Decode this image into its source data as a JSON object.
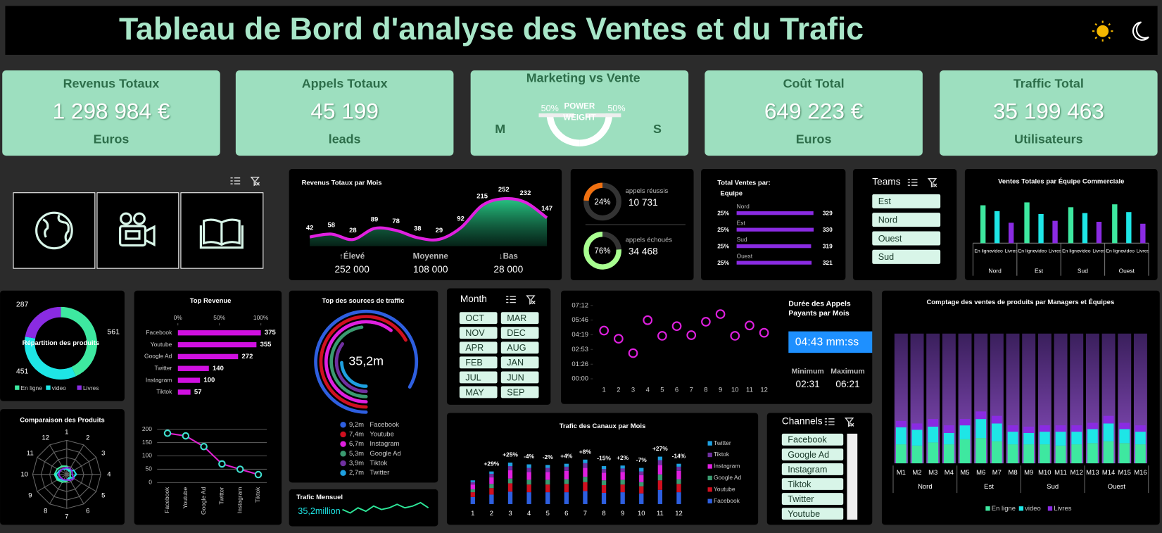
{
  "header": {
    "title": "Tableau de Bord d'analyse des Ventes et du Trafic"
  },
  "kpis": [
    {
      "title": "Revenus Totaux",
      "value": "1 298 984 €",
      "unit": "Euros"
    },
    {
      "title": "Appels Totaux",
      "value": "45 199",
      "unit": "leads"
    },
    {
      "title": "Coût Total",
      "value": "649 223 €",
      "unit": "Euros"
    },
    {
      "title": "Traffic Total",
      "value": "35 199 463",
      "unit": "Utilisateurs"
    }
  ],
  "power_weight": {
    "title": "Marketing vs Vente",
    "label": [
      "POWER",
      "WEIGHT"
    ],
    "left_label": "M",
    "right_label": "S",
    "values": [
      50,
      50
    ],
    "value_labels": [
      "50%",
      "50%"
    ]
  },
  "slicers": {
    "teams": {
      "title": "Teams",
      "items": [
        "Est",
        "Nord",
        "Ouest",
        "Sud"
      ]
    },
    "month": {
      "title": "Month",
      "items": [
        "OCT",
        "MAR",
        "NOV",
        "DEC",
        "APR",
        "AUG",
        "FEB",
        "JAN",
        "JUL",
        "JUN",
        "MAY",
        "SEP"
      ]
    },
    "channels": {
      "title": "Channels",
      "items": [
        "Facebook",
        "Google Ad",
        "Instagram",
        "Tiktok",
        "Twitter",
        "Youtube"
      ]
    }
  },
  "chart_data": [
    {
      "type": "area",
      "title": "Revenus Totaux par Mois",
      "values": [
        42,
        58,
        28,
        89,
        78,
        38,
        29,
        92,
        215,
        252,
        232,
        147
      ],
      "color": "#e020e0",
      "stats": [
        {
          "label": "↑Élevé",
          "value": "252 000"
        },
        {
          "label": "Moyenne",
          "value": "108 000"
        },
        {
          "label": "↓Bas",
          "value": "28 000"
        }
      ]
    },
    {
      "type": "gauge",
      "categories": [
        "appels réussis",
        "appels échoués"
      ],
      "values": [
        24,
        76
      ],
      "value_labels": [
        "24%",
        "76%"
      ],
      "counts": [
        "10 731",
        "34 468"
      ],
      "colors": [
        "#f07010",
        "#a8ff90"
      ]
    },
    {
      "type": "hbar",
      "title": [
        "Total Ventes par:",
        "Equipe"
      ],
      "categories": [
        "Nord",
        "Est",
        "Sud",
        "Ouest"
      ],
      "values": [
        329,
        330,
        319,
        321
      ],
      "share_labels": [
        "25%",
        "25%",
        "25%",
        "25%"
      ],
      "color": "#8a2be2"
    },
    {
      "type": "grouped-bar",
      "title": "Ventes Totales par Équipe Commerciale",
      "categories": [
        "Nord",
        "Est",
        "Sud",
        "Ouest"
      ],
      "series": [
        {
          "name": "En ligne",
          "color": "#3ee8a0",
          "values": [
            78,
            84,
            74,
            80
          ]
        },
        {
          "name": "video",
          "color": "#1ee6e6",
          "values": [
            66,
            60,
            62,
            64
          ]
        },
        {
          "name": "Livres",
          "color": "#8a2be2",
          "values": [
            42,
            46,
            44,
            40
          ]
        }
      ]
    },
    {
      "type": "donut",
      "title": "Répartition des produits",
      "categories": [
        "En ligne",
        "video",
        "Livres"
      ],
      "values": [
        561,
        451,
        287
      ],
      "colors": [
        "#3ee8a0",
        "#1ee6e6",
        "#8a2be2"
      ]
    },
    {
      "type": "hbar",
      "title": "Top Revenue",
      "categories": [
        "Facebook",
        "Youtube",
        "Google Ad",
        "Twitter",
        "Instagram",
        "Tiktok"
      ],
      "values": [
        375,
        355,
        272,
        140,
        100,
        57
      ],
      "color": "#d010e0",
      "xlim": [
        0,
        375
      ],
      "xticks": [
        {
          "value": 0,
          "label": "0%"
        },
        {
          "value": 187.5,
          "label": "50%"
        },
        {
          "value": 375,
          "label": "100%"
        }
      ]
    },
    {
      "type": "line",
      "categories": [
        "Facebook",
        "Youtube",
        "Google Ad",
        "Twitter",
        "Instagram",
        "Tiktok"
      ],
      "values": [
        185,
        175,
        135,
        70,
        50,
        30
      ],
      "ylim": [
        0,
        200
      ],
      "yticks": [
        0,
        50,
        100,
        150,
        200
      ],
      "grid": true,
      "color": "#e020d0",
      "marker_color": "#40e0d0"
    },
    {
      "type": "radar",
      "title": "Comparaison des Produits",
      "categories": [
        "1",
        "2",
        "3",
        "4",
        "5",
        "6",
        "7",
        "8",
        "9",
        "10",
        "11",
        "12"
      ],
      "rlim": [
        0,
        5
      ],
      "series": [
        {
          "name": "En ligne",
          "color": "#3ee8a0",
          "values": [
            1.2,
            0.8,
            0.6,
            0.5,
            0.6,
            0.8,
            1.0,
            1.3,
            1.6,
            1.8,
            1.6,
            1.4
          ]
        },
        {
          "name": "video",
          "color": "#1ee6e6",
          "values": [
            0.8,
            0.6,
            1.2,
            1.4,
            1.0,
            0.6,
            0.8,
            1.0,
            1.4,
            1.6,
            1.2,
            0.9
          ]
        },
        {
          "name": "Livres",
          "color": "#8a2be2",
          "values": [
            1.0,
            1.0,
            0.9,
            0.8,
            1.2,
            1.0,
            0.8,
            0.9,
            1.0,
            1.2,
            1.1,
            1.0
          ]
        }
      ]
    },
    {
      "type": "radial-bar",
      "title": "Top des sources de traffic",
      "center_label": "35,2m",
      "categories": [
        "Facebook",
        "Youtube",
        "Instagram",
        "Google Ad",
        "Tiktok",
        "Twitter"
      ],
      "values": [
        9.2,
        7.4,
        6.7,
        5.3,
        3.9,
        2.7
      ],
      "value_labels": [
        "9,2m",
        "7,4m",
        "6,7m",
        "5,3m",
        "3,9m",
        "2,7m"
      ],
      "colors": [
        "#2e5fe0",
        "#d01020",
        "#e020e0",
        "#3a9a70",
        "#7030a0",
        "#1ea0e0"
      ]
    },
    {
      "type": "sparkline",
      "title": "Trafic Mensuel",
      "label": "35,2million",
      "values": [
        5,
        3,
        6,
        4,
        7,
        5,
        6,
        8,
        6,
        7,
        9,
        6
      ],
      "color": "#2ee89a"
    },
    {
      "type": "scatter",
      "title": [
        "Durée des Appels",
        "Payants par Mois"
      ],
      "x": [
        1,
        2,
        3,
        4,
        5,
        6,
        7,
        8,
        9,
        10,
        11,
        12
      ],
      "values": [
        284,
        236,
        151,
        345,
        253,
        310,
        257,
        336,
        381,
        253,
        314,
        271
      ],
      "color": "#e020e0",
      "xlim": [
        0,
        13
      ],
      "xticks": [
        1,
        2,
        3,
        4,
        5,
        6,
        7,
        8,
        9,
        10,
        11,
        12
      ],
      "ylim": [
        0,
        432
      ],
      "yticks": [
        {
          "value": 0,
          "label": "00:00"
        },
        {
          "value": 86,
          "label": "01:26"
        },
        {
          "value": 173,
          "label": "02:53"
        },
        {
          "value": 259,
          "label": "04:19"
        },
        {
          "value": 346,
          "label": "05:46"
        },
        {
          "value": 432,
          "label": "07:12"
        }
      ],
      "average_label": "04:43 mm:ss",
      "min": {
        "label": "Minimum",
        "value": "02:31"
      },
      "max": {
        "label": "Maximum",
        "value": "06:21"
      }
    },
    {
      "type": "stacked-bar",
      "title": "Trafic des Canaux par Mois",
      "categories": [
        "1",
        "2",
        "3",
        "4",
        "5",
        "6",
        "7",
        "8",
        "9",
        "10",
        "11",
        "12"
      ],
      "annotations": [
        null,
        "+29%",
        "+25%",
        "-4%",
        "-2%",
        "+4%",
        "+8%",
        "-15%",
        "+2%",
        "-7%",
        "+27%",
        "-14%"
      ],
      "series": [
        {
          "name": "Facebook",
          "color": "#2e5fe0",
          "values": [
            12,
            16,
            21,
            20,
            20,
            20,
            22,
            19,
            20,
            18,
            24,
            20
          ]
        },
        {
          "name": "Youtube",
          "color": "#d01020",
          "values": [
            8,
            11,
            14,
            13,
            13,
            14,
            15,
            13,
            13,
            12,
            16,
            14
          ]
        },
        {
          "name": "Google Ad",
          "color": "#3a9a70",
          "values": [
            5,
            7,
            8,
            8,
            8,
            8,
            9,
            8,
            8,
            7,
            10,
            8
          ]
        },
        {
          "name": "Instagram",
          "color": "#e020e0",
          "values": [
            8,
            11,
            14,
            13,
            13,
            14,
            15,
            13,
            13,
            12,
            16,
            14
          ]
        },
        {
          "name": "Tiktok",
          "color": "#7030a0",
          "values": [
            4,
            6,
            7,
            7,
            7,
            7,
            8,
            6,
            6,
            6,
            8,
            7
          ]
        },
        {
          "name": "Twitter",
          "color": "#1ea0e0",
          "values": [
            3,
            4,
            6,
            6,
            5,
            5,
            6,
            5,
            5,
            6,
            6,
            5
          ]
        }
      ]
    },
    {
      "type": "stacked-bar",
      "title": "Comptage des ventes de produits par Managers et Équipes",
      "categories": [
        "M1",
        "M2",
        "M3",
        "M4",
        "M5",
        "M6",
        "M7",
        "M8",
        "M9",
        "M10",
        "M11",
        "M12",
        "M13",
        "M14",
        "M15",
        "M16"
      ],
      "groups": [
        "Nord",
        "Est",
        "Sud",
        "Ouest"
      ],
      "series": [
        {
          "name": "En ligne",
          "color": "#3ee8a0",
          "values": [
            30,
            28,
            33,
            30,
            38,
            40,
            35,
            30,
            30,
            30,
            28,
            30,
            32,
            35,
            32,
            30
          ]
        },
        {
          "name": "video",
          "color": "#1ee6e6",
          "values": [
            27,
            25,
            25,
            18,
            22,
            30,
            28,
            20,
            18,
            20,
            22,
            20,
            22,
            28,
            22,
            20
          ]
        },
        {
          "name": "Livres",
          "color": "#8a2be2",
          "values": [
            10,
            10,
            12,
            12,
            10,
            12,
            12,
            10,
            10,
            10,
            10,
            10,
            10,
            12,
            10,
            10
          ]
        }
      ]
    }
  ]
}
